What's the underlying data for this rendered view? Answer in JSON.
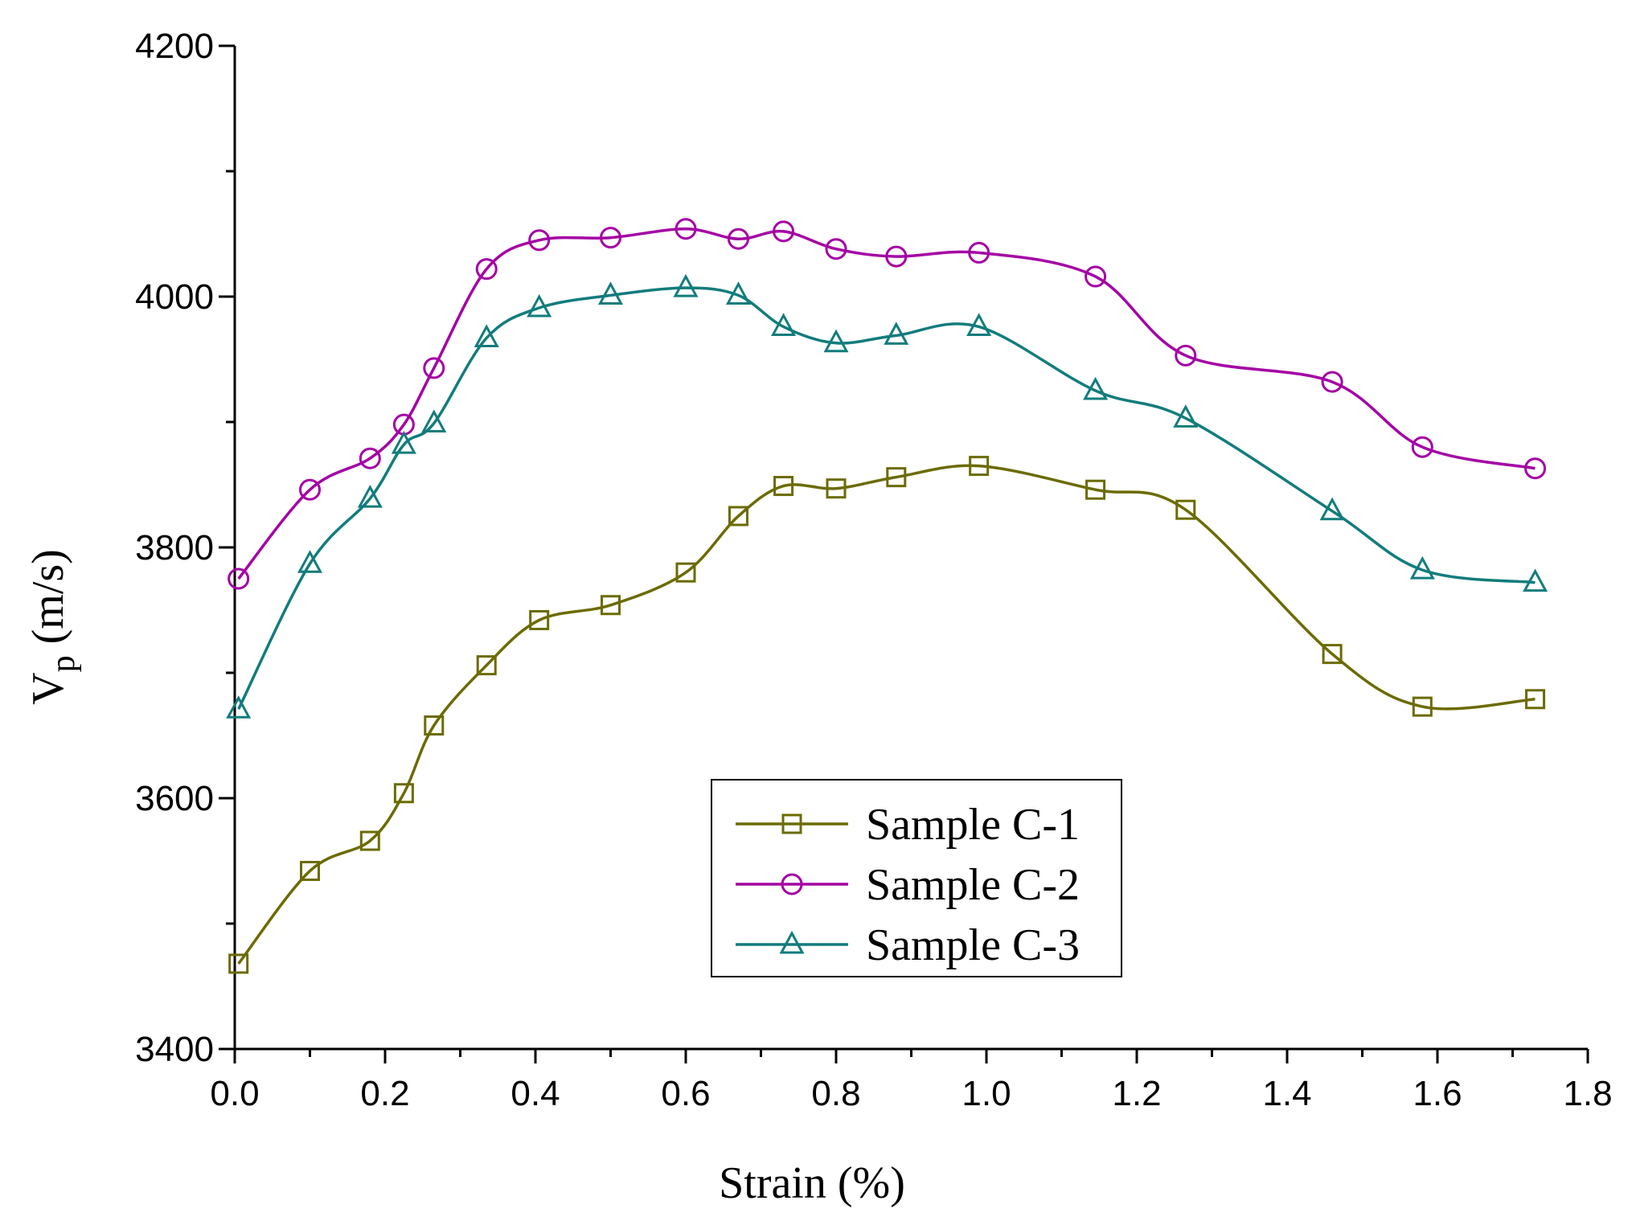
{
  "chart_data": {
    "type": "line",
    "title": "",
    "xlabel": "Strain (%)",
    "ylabel_main": "V",
    "ylabel_sub": "p",
    "ylabel_unit": " (m/s)",
    "xlim": [
      0.0,
      1.8
    ],
    "ylim": [
      3400,
      4200
    ],
    "xticks": [
      "0.0",
      "0.2",
      "0.4",
      "0.6",
      "0.8",
      "1.0",
      "1.2",
      "1.4",
      "1.6",
      "1.8"
    ],
    "xtick_values": [
      0.0,
      0.2,
      0.4,
      0.6,
      0.8,
      1.0,
      1.2,
      1.4,
      1.6,
      1.8
    ],
    "yticks": [
      "3400",
      "3600",
      "3800",
      "4000",
      "4200"
    ],
    "ytick_values": [
      3400,
      3600,
      3800,
      4000,
      4200
    ],
    "legend_position": "bottom-center",
    "grid": false,
    "series": [
      {
        "name": "Sample C-1",
        "color": "#6b6b00",
        "marker": "square",
        "x": [
          0.005,
          0.1,
          0.18,
          0.225,
          0.265,
          0.335,
          0.405,
          0.5,
          0.6,
          0.67,
          0.73,
          0.8,
          0.88,
          0.99,
          1.145,
          1.265,
          1.46,
          1.58,
          1.73
        ],
        "y": [
          3468,
          3542,
          3566,
          3604,
          3658,
          3706,
          3742,
          3754,
          3780,
          3825,
          3849,
          3847,
          3856,
          3865,
          3846,
          3830,
          3715,
          3673,
          3679
        ]
      },
      {
        "name": "Sample C-2",
        "color": "#a400a4",
        "marker": "circle",
        "x": [
          0.005,
          0.1,
          0.18,
          0.225,
          0.265,
          0.335,
          0.405,
          0.5,
          0.6,
          0.67,
          0.73,
          0.8,
          0.88,
          0.99,
          1.145,
          1.265,
          1.46,
          1.58,
          1.73
        ],
        "y": [
          3775,
          3846,
          3871,
          3898,
          3943,
          4022,
          4045,
          4047,
          4054,
          4046,
          4052,
          4038,
          4032,
          4035,
          4016,
          3953,
          3932,
          3880,
          3863
        ]
      },
      {
        "name": "Sample C-3",
        "color": "#127c7c",
        "marker": "triangle",
        "x": [
          0.005,
          0.1,
          0.18,
          0.225,
          0.265,
          0.335,
          0.405,
          0.5,
          0.6,
          0.67,
          0.73,
          0.8,
          0.88,
          0.99,
          1.145,
          1.265,
          1.46,
          1.58,
          1.73
        ],
        "y": [
          3671,
          3787,
          3839,
          3882,
          3899,
          3967,
          3991,
          4001,
          4007,
          4001,
          3976,
          3963,
          3969,
          3976,
          3925,
          3903,
          3829,
          3782,
          3772
        ]
      }
    ]
  }
}
